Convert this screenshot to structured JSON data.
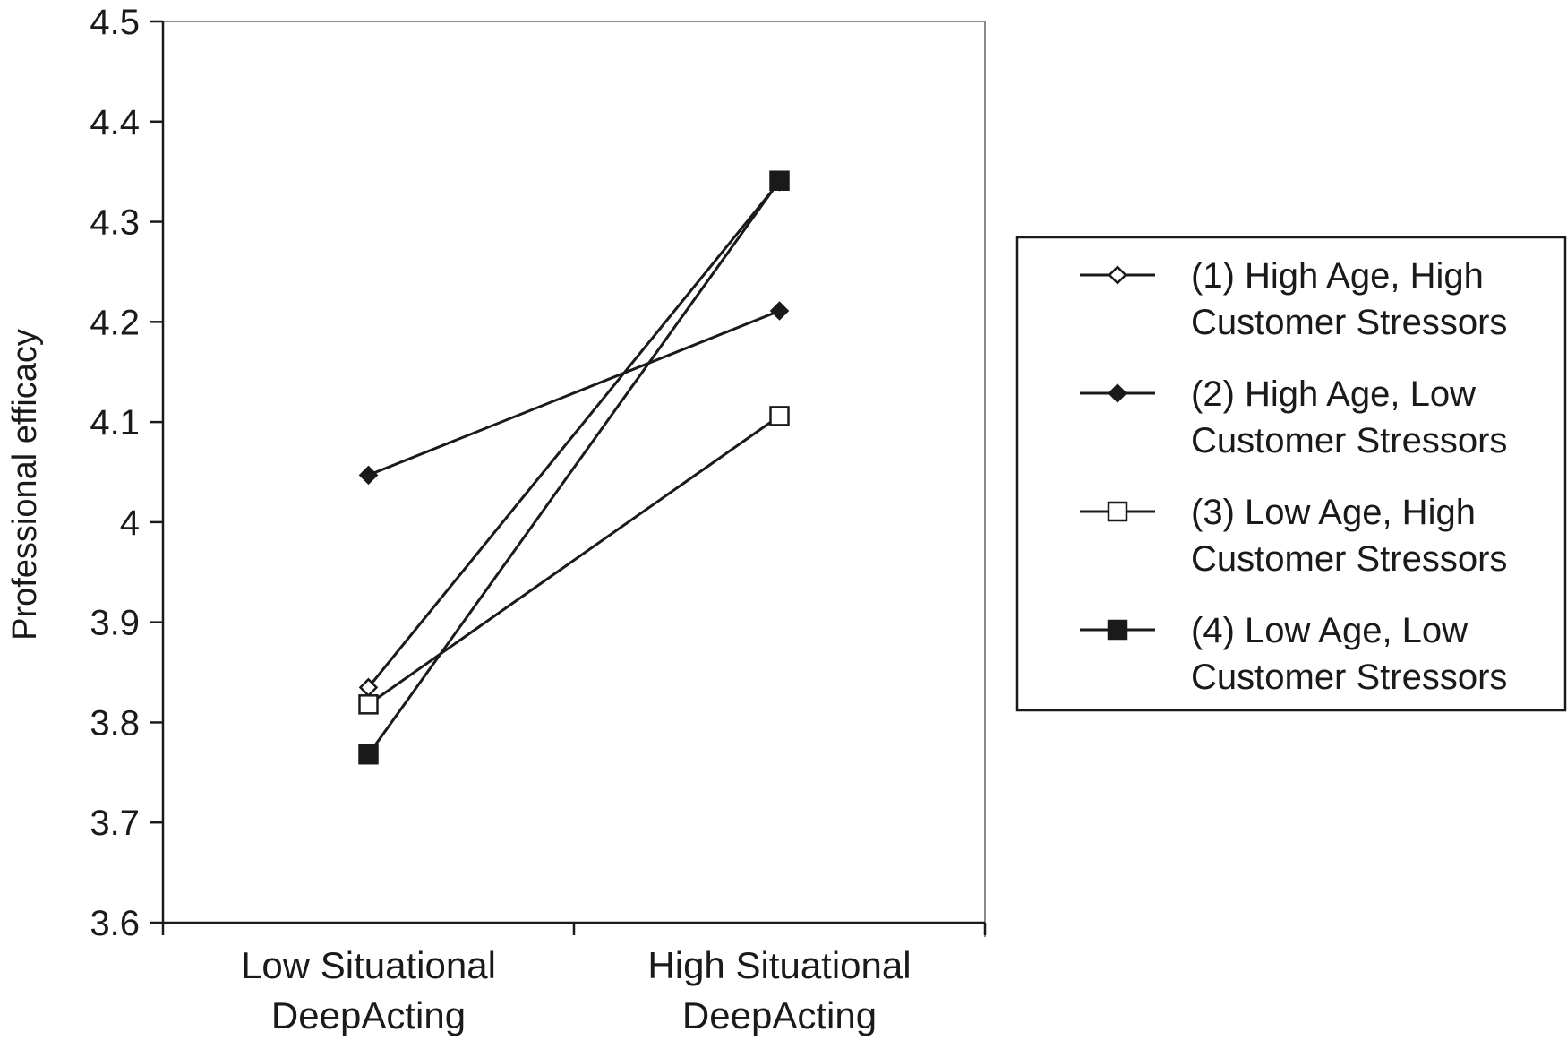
{
  "chart_data": {
    "type": "line",
    "title": "",
    "xlabel": "",
    "ylabel": "Professional efficacy",
    "ylim": [
      3.6,
      4.5
    ],
    "yticks": [
      "3.6",
      "3.7",
      "3.8",
      "3.9",
      "4",
      "4.1",
      "4.2",
      "4.3",
      "4.4",
      "4.5"
    ],
    "categories": [
      [
        "Low Situational",
        "DeepActing"
      ],
      [
        "High Situational",
        "DeepActing"
      ]
    ],
    "grid": false,
    "legend_position": "right",
    "series": [
      {
        "name": [
          "(1) High Age, High",
          "Customer Stressors"
        ],
        "values": [
          3.835,
          4.34
        ],
        "marker": "diamond-open"
      },
      {
        "name": [
          "(2) High Age, Low",
          "Customer Stressors"
        ],
        "values": [
          4.047,
          4.211
        ],
        "marker": "diamond-filled"
      },
      {
        "name": [
          "(3) Low Age, High",
          "Customer Stressors"
        ],
        "values": [
          3.818,
          4.106
        ],
        "marker": "square-open"
      },
      {
        "name": [
          "(4) Low Age, Low",
          "Customer Stressors"
        ],
        "values": [
          3.768,
          4.341
        ],
        "marker": "square-filled"
      }
    ]
  }
}
